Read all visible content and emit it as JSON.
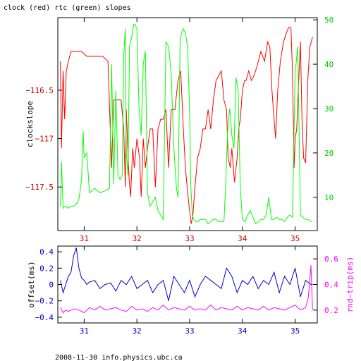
{
  "page": {
    "title": "clock (red) rtc (green) slopes",
    "footer": "2008-11-30 info.physics.ubc.ca"
  },
  "chart_data": [
    {
      "type": "line",
      "title": "clock (red) rtc (green) slopes",
      "xlabel": "",
      "xlim": [
        30.5,
        35.42
      ],
      "x_ticks": [
        31,
        32,
        33,
        34,
        35
      ],
      "x_tick_color": "#cc0000",
      "left_axis": {
        "label": "clockslope",
        "lim": [
          -117.95,
          -115.75
        ],
        "ticks": [
          -116.5,
          -117,
          -117.5
        ],
        "tick_labels": [
          "−116.5",
          "−117",
          "−117.5"
        ],
        "color": "#cc0000"
      },
      "right_axis": {
        "label": "",
        "lim": [
          2.5,
          50.5
        ],
        "ticks": [
          10,
          20,
          30,
          40,
          50
        ],
        "color": "#00cc00"
      },
      "series": [
        {
          "axis": "left",
          "color": "#ff0000",
          "x": [
            30.55,
            30.57,
            30.6,
            30.63,
            30.66,
            30.7,
            30.75,
            30.85,
            30.95,
            31.05,
            31.15,
            31.25,
            31.35,
            31.45,
            31.52,
            31.56,
            31.6,
            31.64,
            31.7,
            31.75,
            31.78,
            31.8,
            31.82,
            31.85,
            31.88,
            31.92,
            31.95,
            32.0,
            32.05,
            32.08,
            32.12,
            32.16,
            32.2,
            32.25,
            32.3,
            32.35,
            32.4,
            32.45,
            32.5,
            32.55,
            32.6,
            32.65,
            32.72,
            32.78,
            32.83,
            32.88,
            32.92,
            32.96,
            33.0,
            33.03,
            33.06,
            33.1,
            33.15,
            33.2,
            33.25,
            33.3,
            33.35,
            33.4,
            33.45,
            33.5,
            33.55,
            33.6,
            33.65,
            33.7,
            33.73,
            33.77,
            33.8,
            33.85,
            33.9,
            33.93,
            33.96,
            34.0,
            34.04,
            34.07,
            34.12,
            34.17,
            34.22,
            34.28,
            34.35,
            34.42,
            34.48,
            34.52,
            34.56,
            34.6,
            34.63,
            34.67,
            34.72,
            34.78,
            34.84,
            34.88,
            34.92,
            34.95,
            34.98,
            35.0,
            35.03,
            35.06,
            35.1,
            35.13,
            35.16,
            35.2,
            35.24,
            35.28,
            35.33
          ],
          "values": [
            -116.2,
            -117.1,
            -116.3,
            -116.8,
            -116.3,
            -116.2,
            -116.1,
            -116.1,
            -116.1,
            -116.15,
            -116.15,
            -116.15,
            -116.15,
            -116.2,
            -117.3,
            -116.6,
            -116.6,
            -116.6,
            -116.6,
            -116.9,
            -117.5,
            -116.7,
            -117.0,
            -117.4,
            -117.6,
            -117.1,
            -117.3,
            -117.0,
            -117.2,
            -117.6,
            -117.0,
            -117.3,
            -117.1,
            -116.9,
            -116.9,
            -117.5,
            -116.9,
            -116.8,
            -116.8,
            -116.7,
            -117.3,
            -116.7,
            -116.7,
            -116.4,
            -116.3,
            -116.9,
            -117.3,
            -117.55,
            -117.75,
            -117.88,
            -117.8,
            -117.5,
            -117.2,
            -117.1,
            -116.9,
            -116.9,
            -116.7,
            -116.9,
            -116.6,
            -116.4,
            -116.35,
            -116.3,
            -116.6,
            -116.7,
            -117.2,
            -117.3,
            -117.1,
            -117.45,
            -117.2,
            -116.9,
            -116.8,
            -116.5,
            -116.4,
            -116.4,
            -116.3,
            -116.4,
            -116.35,
            -116.25,
            -116.1,
            -116.2,
            -116.0,
            -116.05,
            -116.5,
            -116.8,
            -117.0,
            -116.5,
            -116.2,
            -116.0,
            -115.9,
            -115.85,
            -115.85,
            -116.3,
            -117.3,
            -117.0,
            -116.9,
            -116.5,
            -116.0,
            -116.8,
            -117.2,
            -117.25,
            -116.4,
            -116.05,
            -115.95
          ]
        },
        {
          "axis": "right",
          "color": "#00ff00",
          "x": [
            30.55,
            30.57,
            30.6,
            30.65,
            30.7,
            30.75,
            30.8,
            30.85,
            30.9,
            30.95,
            30.98,
            31.0,
            31.05,
            31.1,
            31.15,
            31.2,
            31.3,
            31.4,
            31.48,
            31.52,
            31.56,
            31.6,
            31.64,
            31.68,
            31.72,
            31.75,
            31.78,
            31.8,
            31.83,
            31.86,
            31.9,
            31.94,
            31.96,
            32.0,
            32.04,
            32.08,
            32.12,
            32.16,
            32.2,
            32.25,
            32.3,
            32.35,
            32.4,
            32.45,
            32.5,
            32.55,
            32.6,
            32.65,
            32.7,
            32.75,
            32.78,
            32.82,
            32.85,
            32.88,
            32.92,
            32.96,
            33.0,
            33.02,
            33.05,
            33.08,
            33.12,
            33.16,
            33.2,
            33.25,
            33.3,
            33.35,
            33.4,
            33.45,
            33.5,
            33.55,
            33.6,
            33.65,
            33.68,
            33.72,
            33.76,
            33.8,
            33.84,
            33.88,
            33.92,
            33.96,
            34.0,
            34.05,
            34.1,
            34.15,
            34.2,
            34.25,
            34.3,
            34.35,
            34.4,
            34.45,
            34.5,
            34.55,
            34.6,
            34.65,
            34.7,
            34.75,
            34.8,
            34.85,
            34.9,
            34.95,
            35.0,
            35.05,
            35.1,
            35.15,
            35.2,
            35.25,
            35.3,
            35.33
          ],
          "values": [
            8.0,
            18.0,
            7.5,
            8.0,
            7.5,
            8.0,
            8.0,
            8.5,
            9.5,
            14.0,
            25.0,
            19.0,
            20.0,
            11.0,
            11.5,
            12.0,
            11.0,
            11.5,
            12.0,
            40.0,
            13.0,
            34.0,
            15.0,
            14.0,
            15.0,
            42.0,
            48.0,
            20.0,
            15.0,
            44.0,
            46.0,
            49.0,
            49.0,
            48.0,
            30.0,
            24.0,
            40.0,
            43.0,
            11.0,
            8.0,
            9.0,
            10.0,
            7.0,
            6.0,
            5.0,
            45.0,
            44.0,
            38.0,
            21.0,
            12.0,
            10.0,
            46.0,
            47.0,
            48.0,
            47.0,
            44.0,
            29.0,
            13.0,
            6.0,
            5.0,
            4.5,
            4.5,
            5.0,
            5.0,
            5.0,
            4.0,
            4.5,
            5.0,
            5.0,
            4.5,
            4.5,
            4.5,
            12.0,
            25.0,
            30.0,
            24.0,
            21.0,
            37.0,
            34.0,
            12.0,
            5.0,
            4.5,
            6.0,
            7.0,
            5.5,
            4.0,
            4.5,
            5.0,
            5.0,
            6.0,
            10.0,
            5.0,
            5.0,
            5.5,
            5.0,
            5.0,
            4.5,
            5.5,
            6.0,
            5.5,
            38.0,
            44.0,
            6.0,
            5.5,
            5.0,
            5.0,
            4.5,
            4.5
          ]
        }
      ]
    },
    {
      "type": "line",
      "title": "",
      "xlabel": "",
      "xlim": [
        30.5,
        35.42
      ],
      "x_ticks": [
        31,
        32,
        33,
        34,
        35
      ],
      "x_tick_color": "#0000cc",
      "left_axis": {
        "label": "offset(ms)",
        "lim": [
          -0.47,
          0.47
        ],
        "ticks": [
          0.4,
          0.2,
          0,
          -0.2,
          -0.4
        ],
        "tick_labels": [
          "0.4",
          "0.2",
          "0",
          "−0.2",
          "−0.4"
        ],
        "color": "#0000cc"
      },
      "right_axis": {
        "label": "rnd−trip(ms)",
        "lim": [
          0.1,
          0.7
        ],
        "ticks": [
          0.2,
          0.4,
          0.6
        ],
        "color": "#ff00ff"
      },
      "series": [
        {
          "axis": "left",
          "color": "#0000cc",
          "x": [
            30.55,
            30.6,
            30.65,
            30.7,
            30.75,
            30.8,
            30.85,
            30.9,
            30.95,
            31.0,
            31.05,
            31.1,
            31.2,
            31.3,
            31.4,
            31.5,
            31.6,
            31.7,
            31.8,
            31.9,
            32.0,
            32.1,
            32.2,
            32.3,
            32.4,
            32.5,
            32.6,
            32.7,
            32.8,
            32.9,
            33.0,
            33.1,
            33.2,
            33.3,
            33.4,
            33.5,
            33.6,
            33.7,
            33.8,
            33.9,
            34.0,
            34.1,
            34.2,
            34.3,
            34.4,
            34.5,
            34.6,
            34.7,
            34.8,
            34.9,
            35.0,
            35.1,
            35.2,
            35.3,
            35.33
          ],
          "values": [
            0.05,
            -0.1,
            0.0,
            0.1,
            0.15,
            0.35,
            0.45,
            0.2,
            0.08,
            0.05,
            0.0,
            0.03,
            0.05,
            -0.05,
            0.0,
            0.02,
            -0.08,
            0.05,
            0.0,
            0.1,
            -0.05,
            0.0,
            0.05,
            -0.1,
            0.0,
            0.05,
            -0.2,
            0.1,
            0.0,
            -0.1,
            0.05,
            -0.15,
            0.0,
            0.1,
            0.05,
            0.0,
            -0.05,
            0.2,
            0.1,
            -0.1,
            0.05,
            0.0,
            0.1,
            -0.05,
            0.05,
            0.0,
            0.15,
            -0.1,
            0.1,
            0.0,
            0.2,
            -0.15,
            0.05,
            0.0,
            0.0
          ]
        },
        {
          "axis": "right",
          "color": "#ff00ff",
          "x": [
            30.55,
            30.6,
            30.65,
            30.7,
            30.8,
            30.9,
            31.0,
            31.1,
            31.2,
            31.3,
            31.4,
            31.5,
            31.6,
            31.7,
            31.8,
            31.9,
            32.0,
            32.1,
            32.2,
            32.3,
            32.4,
            32.5,
            32.6,
            32.7,
            32.8,
            32.9,
            33.0,
            33.1,
            33.2,
            33.3,
            33.4,
            33.5,
            33.6,
            33.7,
            33.8,
            33.9,
            34.0,
            34.1,
            34.2,
            34.3,
            34.4,
            34.5,
            34.6,
            34.7,
            34.8,
            34.9,
            35.0,
            35.1,
            35.2,
            35.25,
            35.3,
            35.33
          ],
          "values": [
            0.22,
            0.18,
            0.2,
            0.19,
            0.21,
            0.2,
            0.18,
            0.22,
            0.2,
            0.23,
            0.2,
            0.21,
            0.22,
            0.2,
            0.19,
            0.23,
            0.2,
            0.21,
            0.19,
            0.22,
            0.2,
            0.24,
            0.2,
            0.22,
            0.21,
            0.2,
            0.23,
            0.2,
            0.21,
            0.2,
            0.24,
            0.2,
            0.22,
            0.21,
            0.2,
            0.23,
            0.2,
            0.22,
            0.21,
            0.2,
            0.23,
            0.2,
            0.22,
            0.21,
            0.2,
            0.22,
            0.24,
            0.2,
            0.22,
            0.3,
            0.55,
            0.2
          ]
        }
      ]
    }
  ]
}
